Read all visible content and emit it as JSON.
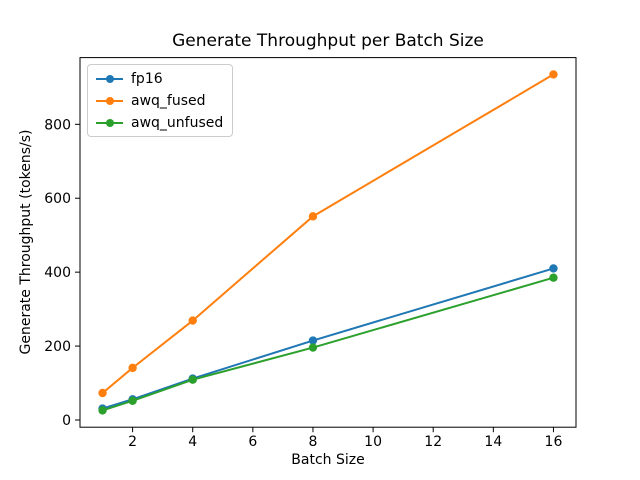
{
  "chart_data": {
    "type": "line",
    "title": "Generate Throughput per Batch Size",
    "xlabel": "Batch Size",
    "ylabel": "Generate Throughput (tokens/s)",
    "x": [
      1,
      2,
      4,
      8,
      16
    ],
    "series": [
      {
        "name": "fp16",
        "color": "#1f77b4",
        "values": [
          31,
          56,
          112,
          215,
          410
        ]
      },
      {
        "name": "awq_fused",
        "color": "#ff7f0e",
        "values": [
          73,
          141,
          269,
          551,
          935
        ]
      },
      {
        "name": "awq_unfused",
        "color": "#2ca02c",
        "values": [
          26,
          52,
          109,
          196,
          385
        ]
      }
    ],
    "x_ticks": [
      2,
      4,
      6,
      8,
      10,
      12,
      14,
      16
    ],
    "y_ticks": [
      0,
      200,
      400,
      600,
      800
    ],
    "xlim": [
      0.25,
      16.75
    ],
    "ylim": [
      -19.5,
      980.5
    ],
    "legend_position": "upper left",
    "grid": false,
    "marker": "circle",
    "background_color": "#ffffff",
    "axes_color": "#000000",
    "legend_border_color": "#cccccc"
  }
}
